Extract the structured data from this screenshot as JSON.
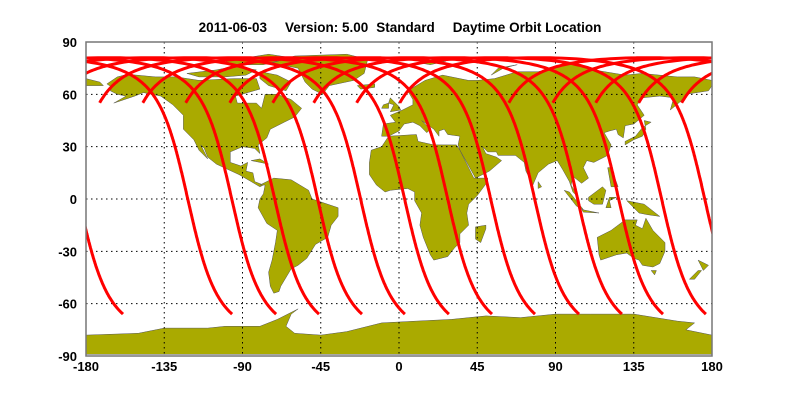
{
  "title": {
    "date": "2011-06-03",
    "version": "Version: 5.00",
    "product": "Standard",
    "label": "Daytime Orbit Location"
  },
  "chart_data": {
    "type": "map",
    "projection": "equirectangular",
    "xlim": [
      -180,
      180
    ],
    "ylim": [
      -90,
      90
    ],
    "x_ticks": [
      "-180",
      "-135",
      "-90",
      "-45",
      "0",
      "45",
      "90",
      "135",
      "180"
    ],
    "y_ticks": [
      "90",
      "60",
      "30",
      "0",
      "-30",
      "-60",
      "-90"
    ],
    "grid": true,
    "colors": {
      "land": "#aaaa00",
      "track": "#ff0000",
      "grid": "#000000",
      "frame": "#777777"
    },
    "orbit_tracks": {
      "max_latitude": 81,
      "southern_end_latitude": -66,
      "northern_end_latitude": 55,
      "southern_end_longitudes": [
        -96,
        -70.7,
        -46,
        -21.3,
        3.4,
        28.7,
        53.5,
        78.2,
        103.5,
        128.2,
        151.8,
        176.5,
        -158.7
      ]
    }
  }
}
